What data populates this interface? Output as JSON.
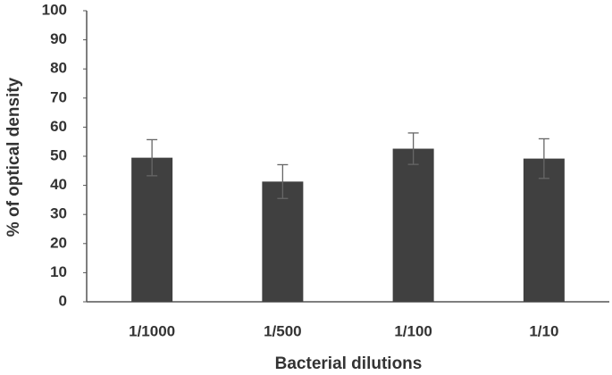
{
  "chart_data": {
    "type": "bar",
    "x_label": "Bacterial dilutions",
    "y_label": "% of optical density",
    "categories": [
      "1/1000",
      "1/500",
      "1/100",
      "1/10"
    ],
    "values": [
      49.5,
      41.3,
      52.6,
      49.2
    ],
    "errors": [
      6.2,
      5.8,
      5.4,
      6.8
    ],
    "color": "#404040",
    "ylim": [
      0,
      100
    ],
    "yticks": [
      0,
      10,
      20,
      30,
      40,
      50,
      60,
      70,
      80,
      90,
      100
    ],
    "grid": false
  }
}
